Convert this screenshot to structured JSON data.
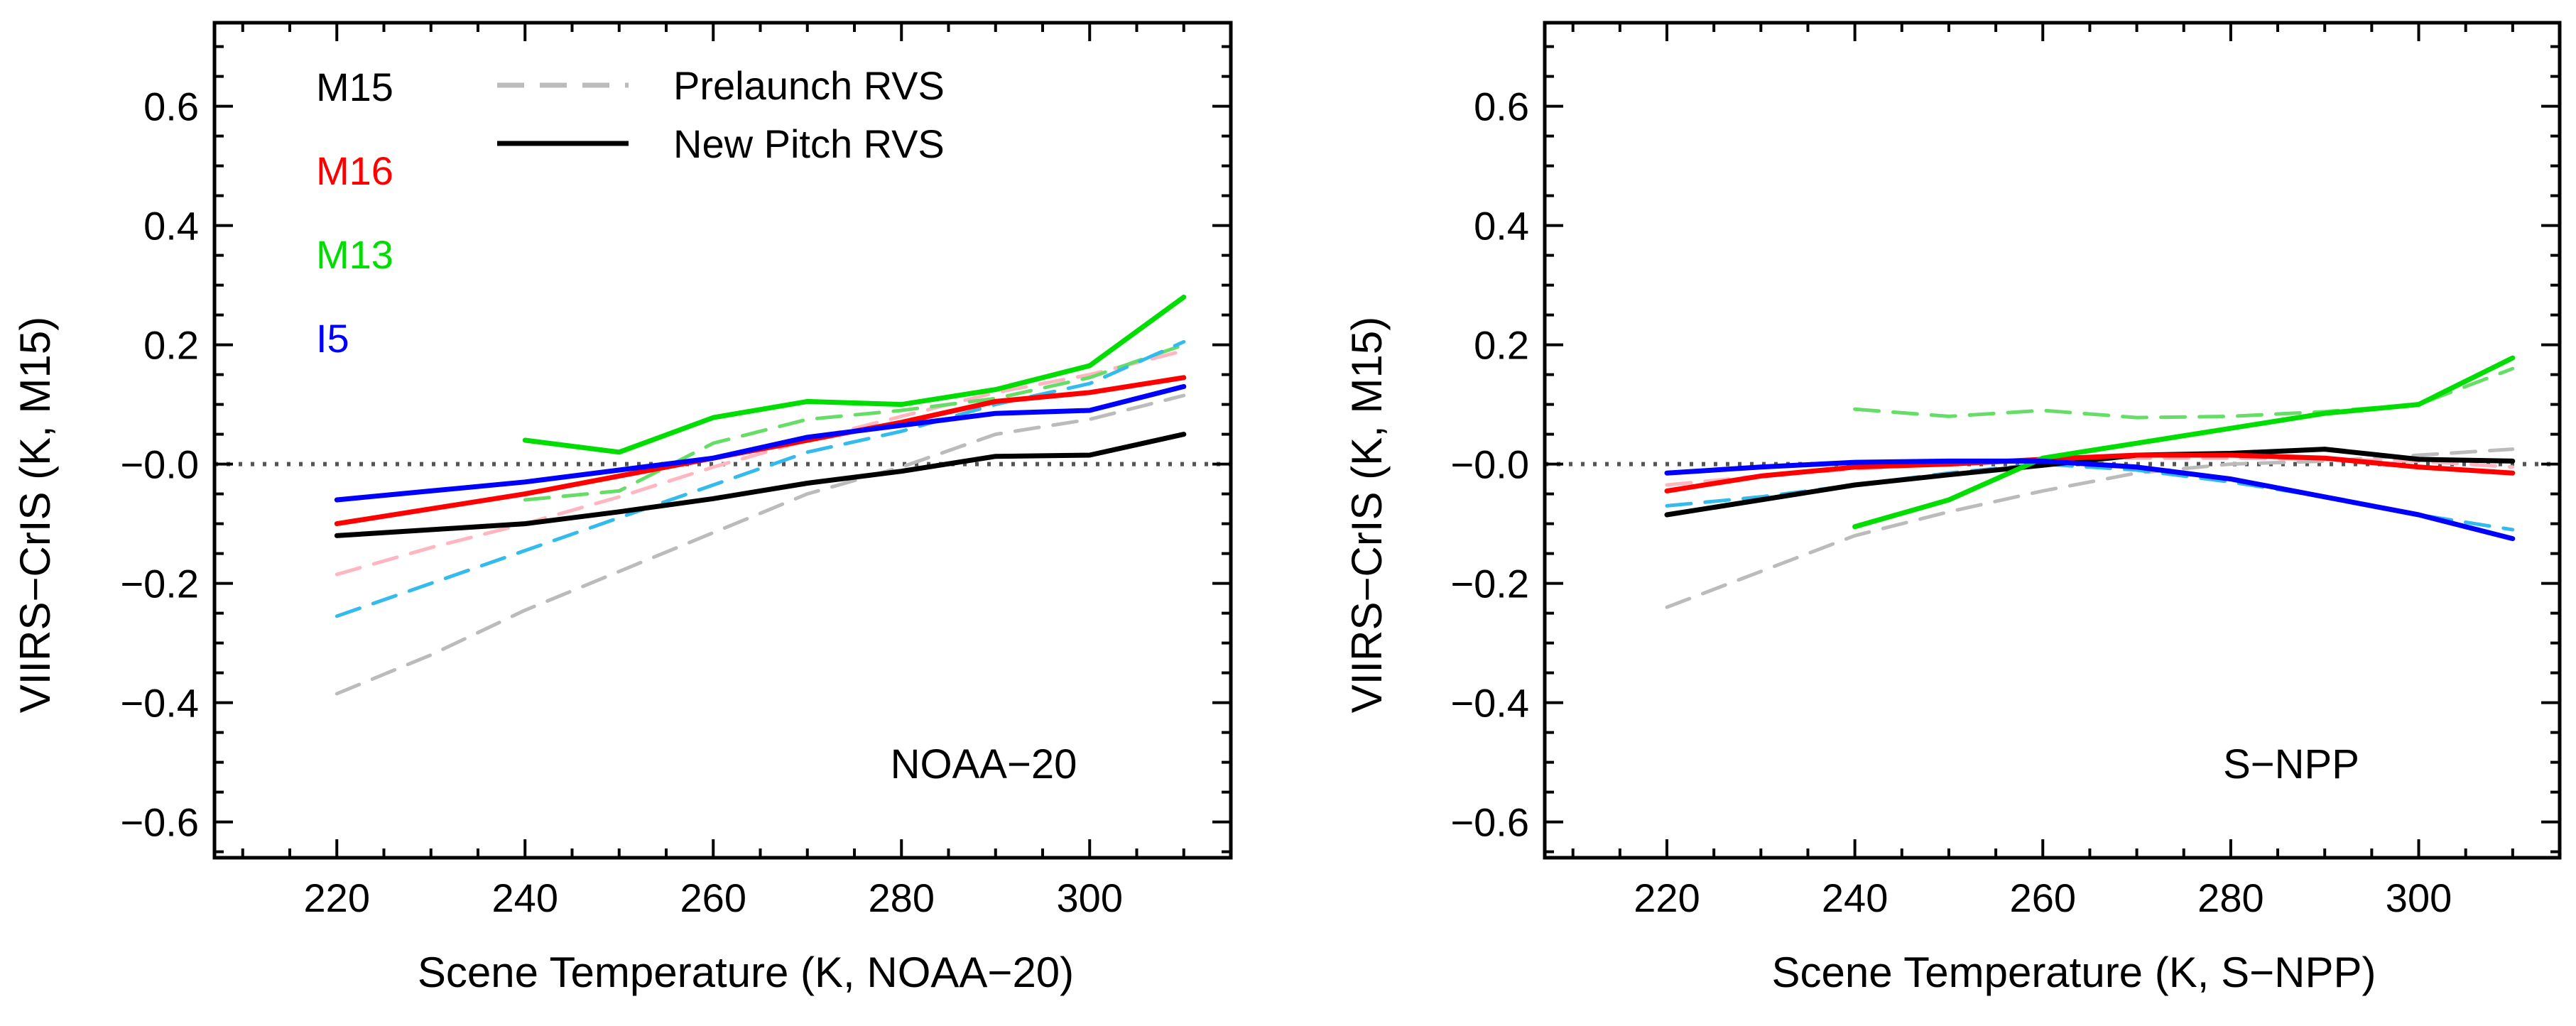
{
  "chart_data": [
    {
      "type": "line",
      "panel_label": "NOAA−20",
      "xlabel": "Scene Temperature (K, NOAA−20)",
      "ylabel": "VIIRS−CrIS (K, M15)",
      "xlim": [
        207,
        315
      ],
      "ylim": [
        -0.66,
        0.74
      ],
      "xticks": [
        220,
        240,
        260,
        280,
        300
      ],
      "yticks": [
        -0.6,
        -0.4,
        -0.2,
        0.0,
        0.2,
        0.4,
        0.6
      ],
      "ytick_labels": [
        "−0.6",
        "−0.4",
        "−0.2",
        "−0.0",
        "0.2",
        "0.4",
        "0.6"
      ],
      "zero_line": true,
      "legend": {
        "bands": [
          {
            "name": "M15",
            "color": "#000000"
          },
          {
            "name": "M16",
            "color": "#ff0000"
          },
          {
            "name": "M13",
            "color": "#00dd00"
          },
          {
            "name": "I5",
            "color": "#0000ff"
          }
        ],
        "styles": [
          {
            "name": "Prelaunch RVS",
            "dash": true,
            "color": "#bbbbbb"
          },
          {
            "name": "New Pitch RVS",
            "dash": false,
            "color": "#000000"
          }
        ]
      },
      "series": [
        {
          "name": "M15 Prelaunch RVS",
          "style": "dashed",
          "color": "#bbbbbb",
          "x": [
            220,
            230,
            240,
            250,
            260,
            270,
            280,
            290,
            300,
            310
          ],
          "y": [
            -0.385,
            -0.32,
            -0.245,
            -0.18,
            -0.115,
            -0.05,
            -0.005,
            0.05,
            0.075,
            0.115
          ]
        },
        {
          "name": "M16 Prelaunch RVS",
          "style": "dashed",
          "color": "#ffb6c1",
          "x": [
            220,
            230,
            240,
            250,
            260,
            270,
            280,
            290,
            300,
            310
          ],
          "y": [
            -0.185,
            -0.14,
            -0.1,
            -0.055,
            -0.005,
            0.04,
            0.08,
            0.12,
            0.15,
            0.19
          ]
        },
        {
          "name": "M13 Prelaunch RVS",
          "style": "dashed",
          "color": "#66dd66",
          "x": [
            240,
            250,
            260,
            270,
            280,
            290,
            300,
            310
          ],
          "y": [
            -0.06,
            -0.045,
            0.035,
            0.075,
            0.09,
            0.11,
            0.145,
            0.2
          ]
        },
        {
          "name": "I5 Prelaunch RVS",
          "style": "dashed",
          "color": "#33bbee",
          "x": [
            220,
            230,
            240,
            250,
            260,
            270,
            280,
            290,
            300,
            310
          ],
          "y": [
            -0.255,
            -0.2,
            -0.145,
            -0.09,
            -0.035,
            0.02,
            0.055,
            0.1,
            0.135,
            0.205
          ]
        },
        {
          "name": "M15 New Pitch RVS",
          "style": "solid",
          "color": "#000000",
          "x": [
            220,
            230,
            240,
            250,
            260,
            270,
            280,
            290,
            300,
            310
          ],
          "y": [
            -0.12,
            -0.11,
            -0.1,
            -0.08,
            -0.058,
            -0.032,
            -0.012,
            0.013,
            0.015,
            0.05
          ]
        },
        {
          "name": "M16 New Pitch RVS",
          "style": "solid",
          "color": "#ff0000",
          "x": [
            220,
            230,
            240,
            250,
            260,
            270,
            280,
            290,
            300,
            310
          ],
          "y": [
            -0.1,
            -0.075,
            -0.05,
            -0.02,
            0.01,
            0.04,
            0.07,
            0.105,
            0.12,
            0.145
          ]
        },
        {
          "name": "M13 New Pitch RVS",
          "style": "solid",
          "color": "#00dd00",
          "x": [
            240,
            250,
            260,
            270,
            280,
            290,
            300,
            310
          ],
          "y": [
            0.04,
            0.02,
            0.078,
            0.105,
            0.1,
            0.125,
            0.165,
            0.28
          ]
        },
        {
          "name": "I5 New Pitch RVS",
          "style": "solid",
          "color": "#0000ff",
          "x": [
            220,
            230,
            240,
            250,
            260,
            270,
            280,
            290,
            300,
            310
          ],
          "y": [
            -0.06,
            -0.045,
            -0.03,
            -0.01,
            0.01,
            0.045,
            0.065,
            0.085,
            0.09,
            0.13
          ]
        }
      ]
    },
    {
      "type": "line",
      "panel_label": "S−NPP",
      "xlabel": "Scene Temperature (K, S−NPP)",
      "ylabel": "VIIRS−CrIS (K, M15)",
      "xlim": [
        207,
        315
      ],
      "ylim": [
        -0.66,
        0.74
      ],
      "xticks": [
        220,
        240,
        260,
        280,
        300
      ],
      "yticks": [
        -0.6,
        -0.4,
        -0.2,
        0.0,
        0.2,
        0.4,
        0.6
      ],
      "ytick_labels": [
        "−0.6",
        "−0.4",
        "−0.2",
        "−0.0",
        "0.2",
        "0.4",
        "0.6"
      ],
      "zero_line": true,
      "series": [
        {
          "name": "M15 Prelaunch RVS",
          "style": "dashed",
          "color": "#bbbbbb",
          "x": [
            220,
            230,
            240,
            250,
            260,
            270,
            280,
            290,
            300,
            310
          ],
          "y": [
            -0.24,
            -0.18,
            -0.12,
            -0.08,
            -0.045,
            -0.015,
            0.0,
            0.005,
            0.015,
            0.025
          ]
        },
        {
          "name": "M16 Prelaunch RVS",
          "style": "dashed",
          "color": "#ffb6c1",
          "x": [
            220,
            230,
            240,
            250,
            260,
            270,
            280,
            290,
            300,
            310
          ],
          "y": [
            -0.035,
            -0.02,
            -0.008,
            0.0,
            0.005,
            0.01,
            0.01,
            0.008,
            0.005,
            -0.005
          ]
        },
        {
          "name": "M13 Prelaunch RVS",
          "style": "dashed",
          "color": "#66dd66",
          "x": [
            240,
            250,
            260,
            270,
            280,
            290,
            300,
            310
          ],
          "y": [
            0.092,
            0.08,
            0.09,
            0.078,
            0.08,
            0.088,
            0.1,
            0.16
          ]
        },
        {
          "name": "I5 Prelaunch RVS",
          "style": "dashed",
          "color": "#33bbee",
          "x": [
            220,
            230,
            240,
            250,
            260,
            270,
            280,
            290,
            300,
            310
          ],
          "y": [
            -0.07,
            -0.055,
            -0.035,
            -0.015,
            0.0,
            -0.01,
            -0.03,
            -0.055,
            -0.085,
            -0.11
          ]
        },
        {
          "name": "M15 New Pitch RVS",
          "style": "solid",
          "color": "#000000",
          "x": [
            220,
            230,
            240,
            250,
            260,
            270,
            280,
            290,
            300,
            310
          ],
          "y": [
            -0.085,
            -0.06,
            -0.035,
            -0.018,
            -0.002,
            0.015,
            0.018,
            0.025,
            0.008,
            0.005
          ]
        },
        {
          "name": "M16 New Pitch RVS",
          "style": "solid",
          "color": "#ff0000",
          "x": [
            220,
            230,
            240,
            250,
            260,
            270,
            280,
            290,
            300,
            310
          ],
          "y": [
            -0.045,
            -0.02,
            -0.005,
            0.0,
            0.008,
            0.015,
            0.015,
            0.01,
            -0.005,
            -0.015
          ]
        },
        {
          "name": "M13 New Pitch RVS",
          "style": "solid",
          "color": "#00dd00",
          "x": [
            240,
            250,
            260,
            270,
            280,
            290,
            300,
            310
          ],
          "y": [
            -0.105,
            -0.06,
            0.01,
            0.035,
            0.06,
            0.085,
            0.1,
            0.178
          ]
        },
        {
          "name": "I5 New Pitch RVS",
          "style": "solid",
          "color": "#0000ff",
          "x": [
            220,
            230,
            240,
            250,
            260,
            270,
            280,
            290,
            300,
            310
          ],
          "y": [
            -0.015,
            -0.005,
            0.003,
            0.005,
            0.005,
            -0.005,
            -0.025,
            -0.055,
            -0.085,
            -0.125
          ]
        }
      ]
    }
  ]
}
